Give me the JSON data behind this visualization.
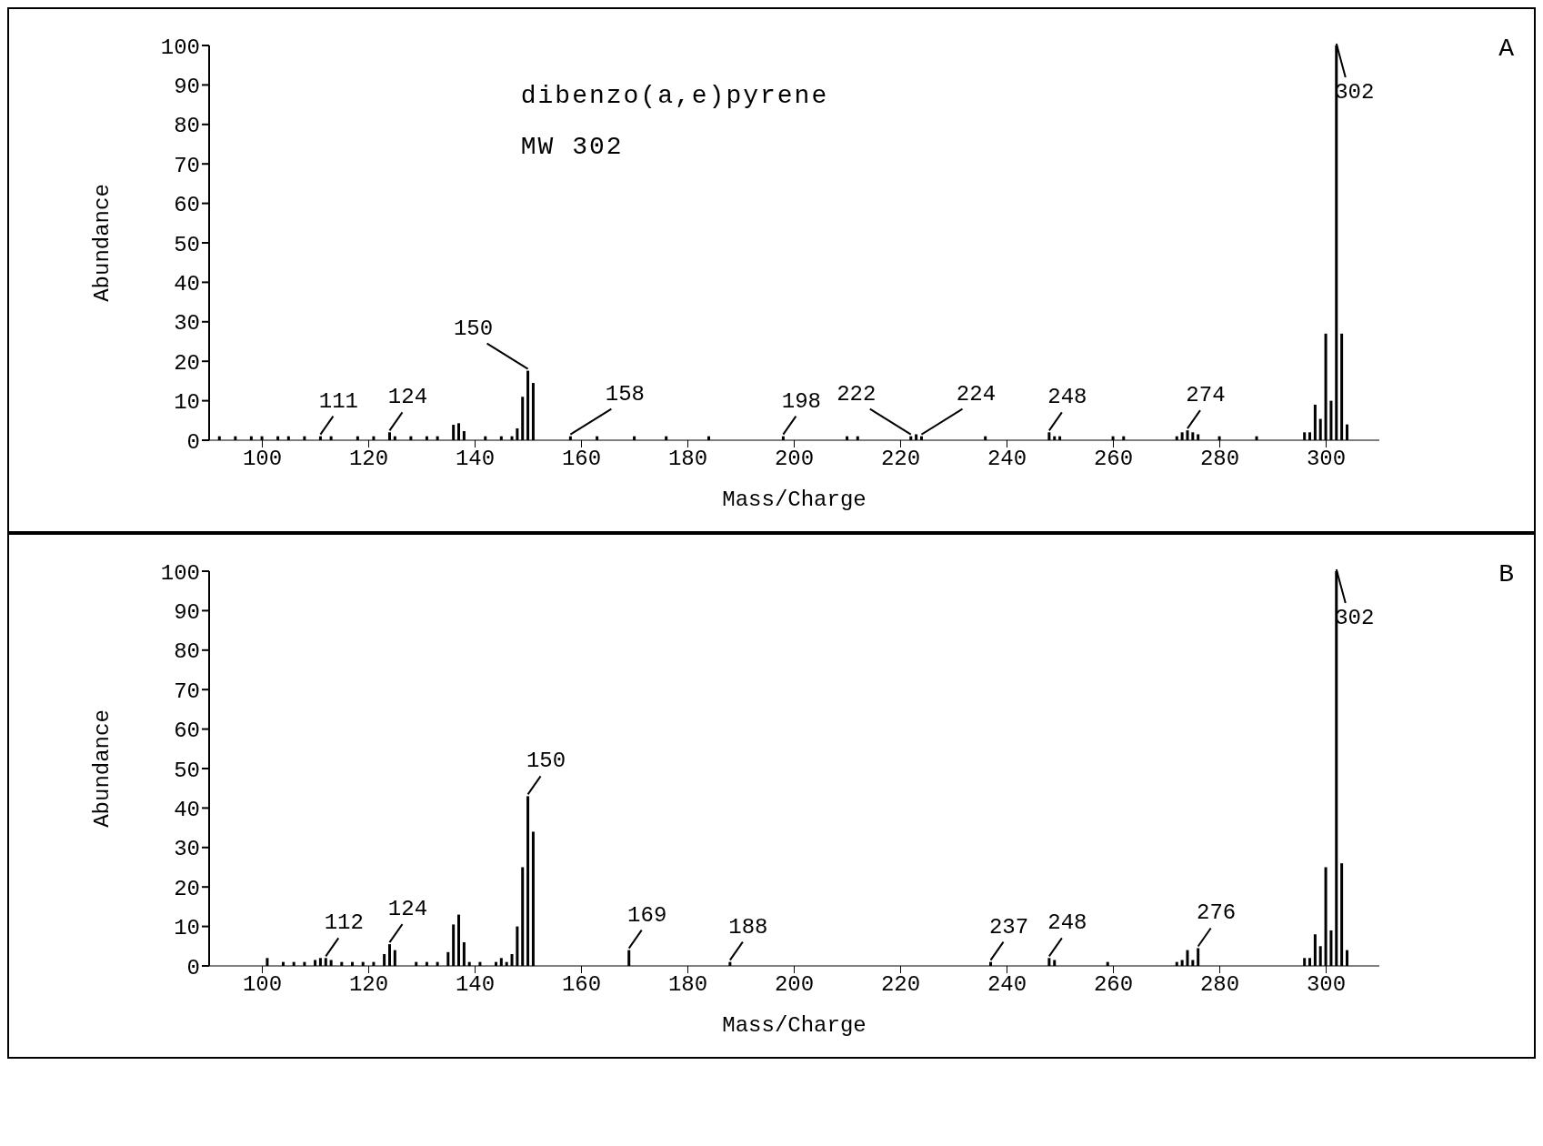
{
  "chart_data": [
    {
      "type": "bar",
      "xlabel": "Mass/Charge",
      "ylabel": "Abundance",
      "xlim": [
        90,
        310
      ],
      "xticks": [
        100,
        120,
        140,
        160,
        180,
        200,
        220,
        240,
        260,
        280,
        300
      ],
      "ylim": [
        0,
        100
      ],
      "yticks": [
        0,
        10,
        20,
        30,
        40,
        50,
        60,
        70,
        80,
        90,
        100
      ],
      "grid": false,
      "legend": false,
      "series": [
        {
          "color": "#000000",
          "x": [
            92,
            95,
            98,
            100,
            103,
            105,
            108,
            111,
            113,
            118,
            121,
            124,
            125,
            128,
            131,
            133,
            136,
            137,
            138,
            142,
            145,
            147,
            148,
            149,
            150,
            151,
            158,
            163,
            170,
            176,
            184,
            198,
            210,
            212,
            222,
            223,
            224,
            236,
            248,
            249,
            250,
            260,
            262,
            272,
            273,
            274,
            275,
            276,
            280,
            287,
            296,
            297,
            298,
            299,
            300,
            301,
            302,
            303,
            304
          ],
          "values": [
            1,
            1,
            1,
            1,
            1,
            1,
            1,
            1,
            1,
            1,
            1,
            2,
            1,
            1,
            1,
            1,
            3.9,
            4.3,
            2.3,
            1,
            1,
            1,
            3,
            11,
            17.6,
            14.5,
            1,
            1,
            1,
            1,
            1,
            1,
            1,
            1,
            1,
            1.5,
            1,
            1,
            2,
            1,
            1,
            1,
            1,
            1,
            2,
            2.5,
            2,
            1.5,
            1,
            1,
            2,
            2,
            9,
            5.4,
            27,
            10,
            100,
            27,
            4
          ]
        }
      ],
      "annotations": [
        "dibenzo(a,e)pyrene",
        "MW 302",
        "A",
        {
          "text": "111",
          "x": 111,
          "y": 1
        },
        {
          "text": "124",
          "x": 124,
          "y": 2
        },
        {
          "text": "150",
          "x": 150,
          "y": 17.6
        },
        {
          "text": "158",
          "x": 158,
          "y": 1
        },
        {
          "text": "198",
          "x": 198,
          "y": 1
        },
        {
          "text": "222",
          "x": 222,
          "y": 1
        },
        {
          "text": "224",
          "x": 224,
          "y": 1
        },
        {
          "text": "248",
          "x": 248,
          "y": 2
        },
        {
          "text": "274",
          "x": 274,
          "y": 2.5
        },
        {
          "text": "302",
          "x": 302,
          "y": 100
        }
      ]
    },
    {
      "type": "bar",
      "xlabel": "Mass/Charge",
      "ylabel": "Abundance",
      "xlim": [
        90,
        310
      ],
      "xticks": [
        100,
        120,
        140,
        160,
        180,
        200,
        220,
        240,
        260,
        280,
        300
      ],
      "ylim": [
        0,
        100
      ],
      "yticks": [
        0,
        10,
        20,
        30,
        40,
        50,
        60,
        70,
        80,
        90,
        100
      ],
      "grid": false,
      "legend": false,
      "series": [
        {
          "color": "#000000",
          "x": [
            101,
            104,
            106,
            108,
            110,
            111,
            112,
            113,
            115,
            117,
            119,
            121,
            123,
            124,
            125,
            129,
            131,
            133,
            135,
            136,
            137,
            138,
            139,
            141,
            144,
            145,
            146,
            147,
            148,
            149,
            150,
            151,
            169,
            188,
            237,
            248,
            249,
            259,
            272,
            273,
            274,
            275,
            276,
            296,
            297,
            298,
            299,
            300,
            301,
            302,
            303,
            304
          ],
          "values": [
            2,
            1,
            1,
            1,
            1.5,
            2,
            2,
            1.5,
            1,
            1,
            1,
            1,
            3,
            5.5,
            4,
            1,
            1,
            1,
            3.5,
            10.5,
            13,
            6,
            1,
            1,
            1,
            2,
            1,
            3,
            10,
            25,
            43,
            34,
            4,
            1,
            1,
            2,
            1.5,
            1,
            1,
            1.5,
            4,
            1.5,
            4.5,
            2,
            2,
            8,
            5,
            25,
            9,
            100,
            26,
            4
          ]
        }
      ],
      "annotations": [
        "B",
        {
          "text": "112",
          "x": 112,
          "y": 2
        },
        {
          "text": "124",
          "x": 124,
          "y": 5.5
        },
        {
          "text": "150",
          "x": 150,
          "y": 43
        },
        {
          "text": "169",
          "x": 169,
          "y": 4
        },
        {
          "text": "188",
          "x": 188,
          "y": 1
        },
        {
          "text": "237",
          "x": 237,
          "y": 1
        },
        {
          "text": "248",
          "x": 248,
          "y": 2
        },
        {
          "text": "276",
          "x": 276,
          "y": 4.5
        },
        {
          "text": "302",
          "x": 302,
          "y": 100
        }
      ]
    }
  ]
}
